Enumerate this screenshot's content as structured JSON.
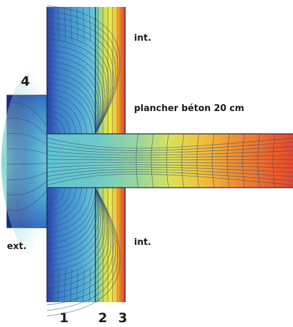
{
  "labels": {
    "int_top": "int.",
    "int_bottom": "int.",
    "ext": "ext.",
    "slab": "plancher béton 20 cm",
    "n1": "1",
    "n2": "2",
    "n3": "3",
    "n4": "4"
  },
  "colors": {
    "cold": "#1a2a8c",
    "cool": "#2f7fd0",
    "mid": "#5cc6d8",
    "warm_mid": "#e8e84a",
    "warm": "#f08a2a",
    "hot": "#e8462a",
    "isoline": "#3a4a70"
  }
}
